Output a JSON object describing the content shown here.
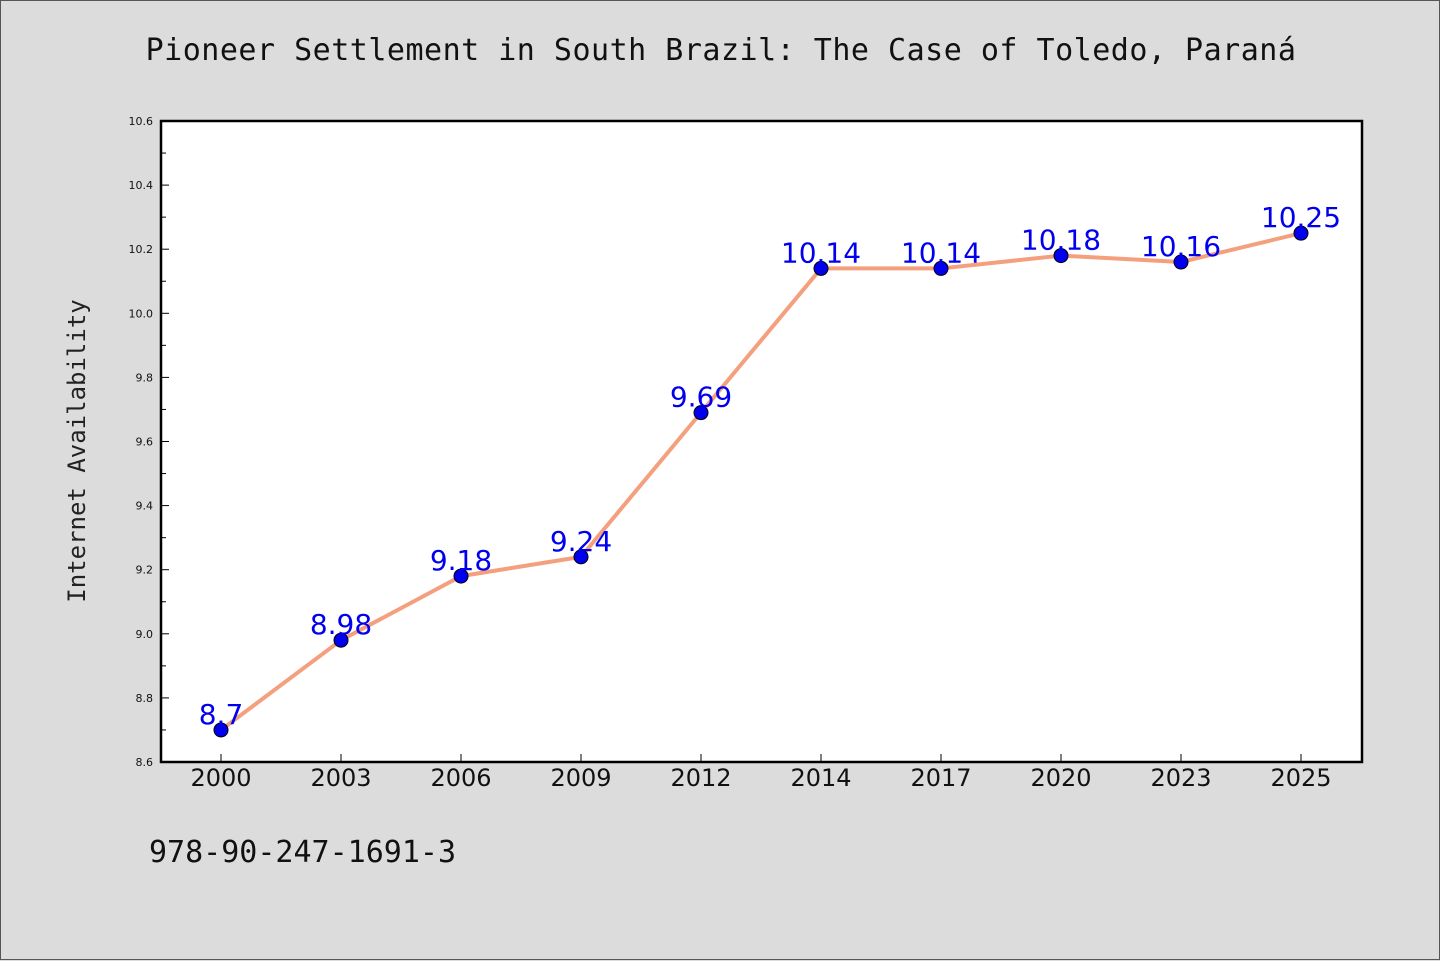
{
  "chart_data": {
    "type": "line",
    "title": "Pioneer Settlement in South Brazil: The Case of Toledo, Paraná",
    "xlabel": "",
    "ylabel": "Internet Availability",
    "categories": [
      "2000",
      "2003",
      "2006",
      "2009",
      "2012",
      "2014",
      "2017",
      "2020",
      "2023",
      "2025"
    ],
    "series": [
      {
        "values": [
          8.7,
          8.98,
          9.18,
          9.24,
          9.69,
          10.14,
          10.14,
          10.18,
          10.16,
          10.25
        ],
        "data_labels": [
          "8.7",
          "8.98",
          "9.18",
          "9.24",
          "9.69",
          "10.14",
          "10.14",
          "10.18",
          "10.16",
          "10.25"
        ],
        "line_color": "#f4a07e",
        "marker_color": "#0000ee",
        "label_color": "#0000ee"
      }
    ],
    "ylim": [
      8.6,
      10.6
    ],
    "yticks": [
      "8.6",
      "8.8",
      "9.0",
      "9.2",
      "9.4",
      "9.6",
      "9.8",
      "10.0",
      "10.2",
      "10.4",
      "10.6"
    ],
    "grid": false,
    "legend": "none"
  },
  "footer": {
    "text": "978-90-247-1691-3"
  },
  "colors": {
    "background": "#dcdcdc",
    "plot_area": "#ffffff",
    "frame": "#000000"
  }
}
